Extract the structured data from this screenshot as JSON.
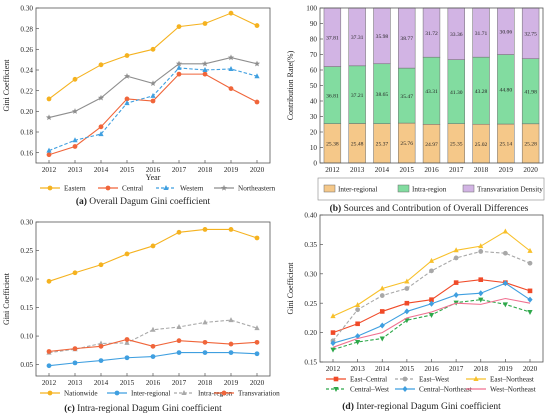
{
  "years": [
    "2012",
    "2013",
    "2014",
    "2015",
    "2016",
    "2017",
    "2018",
    "2019",
    "2020"
  ],
  "colors": {
    "eastern": "#f5b21f",
    "central": "#f0653a",
    "western": "#3f9fe0",
    "northeastern": "#8e8e8e",
    "inter_regional": "#f5c889",
    "intra_region": "#82dca0",
    "transvariation_density": "#d2b4e4",
    "nationwide": "#f5b21f",
    "inter_regional_line": "#3f9fe0",
    "intra_region_line": "#a9a9a9",
    "transvariation_line": "#f0653a",
    "east_central": "#f04a28",
    "east_west": "#a8a8a8",
    "east_northeast": "#f8c02a",
    "central_west": "#2ea84a",
    "central_northeast": "#3f9fe0",
    "west_northeast": "#f07090"
  },
  "chart_data": [
    {
      "id": "a",
      "type": "line",
      "caption_label": "(a)",
      "caption_text": "Overall Dagum Gini coefficient",
      "xlabel": "Year",
      "ylabel": "Gini Coefficient",
      "ylim": [
        0.15,
        0.3
      ],
      "yticks": [
        "0.16",
        "0.18",
        "0.20",
        "0.22",
        "0.24",
        "0.26",
        "0.28",
        "0.30"
      ],
      "grid": false,
      "legend_position": "bottom",
      "series": [
        {
          "name": "Eastern",
          "color": "eastern",
          "marker": "circle",
          "dash": false,
          "values": [
            0.212,
            0.231,
            0.245,
            0.254,
            0.26,
            0.282,
            0.285,
            0.295,
            0.283
          ]
        },
        {
          "name": "Central",
          "color": "central",
          "marker": "circle",
          "dash": false,
          "values": [
            0.158,
            0.166,
            0.185,
            0.212,
            0.21,
            0.236,
            0.236,
            0.222,
            0.209
          ]
        },
        {
          "name": "Western",
          "color": "western",
          "marker": "triangle",
          "dash": true,
          "values": [
            0.162,
            0.172,
            0.178,
            0.208,
            0.215,
            0.242,
            0.24,
            0.241,
            0.234
          ]
        },
        {
          "name": "Northeastern",
          "color": "northeastern",
          "marker": "star",
          "dash": false,
          "values": [
            0.194,
            0.2,
            0.213,
            0.234,
            0.227,
            0.246,
            0.246,
            0.252,
            0.246
          ]
        }
      ]
    },
    {
      "id": "b",
      "type": "bar",
      "stacked": true,
      "caption_label": "(b)",
      "caption_text": "Sources and Contribution of Overall Differences",
      "xlabel": "",
      "ylabel": "Contribution Rate(%)",
      "ylim": [
        0,
        100
      ],
      "yticks": [
        "0",
        "10",
        "20",
        "30",
        "40",
        "50",
        "60",
        "70",
        "80",
        "90",
        "100"
      ],
      "legend_position": "bottom",
      "series": [
        {
          "name": "Inter-regional",
          "color": "inter_regional",
          "values": [
            25.38,
            25.48,
            25.37,
            25.76,
            24.97,
            25.35,
            25.02,
            25.14,
            25.28
          ],
          "labels": [
            "25.38",
            "25.48",
            "25.37",
            "25.76",
            "24.97",
            "25.35",
            "25.02",
            "25.14",
            "25.28"
          ]
        },
        {
          "name": "Intra-region",
          "color": "intra_region",
          "values": [
            36.81,
            37.21,
            38.65,
            35.47,
            43.31,
            41.3,
            43.28,
            44.8,
            41.98
          ],
          "labels": [
            "36.81",
            "37.21",
            "38.65",
            "35.47",
            "43.31",
            "41.30",
            "43.28",
            "44.80",
            "41.98"
          ]
        },
        {
          "name": "Transvariation Density",
          "color": "transvariation_density",
          "values": [
            37.81,
            37.31,
            35.98,
            38.77,
            31.72,
            33.36,
            31.71,
            30.06,
            32.75
          ],
          "labels": [
            "37.81",
            "37.31",
            "35.98",
            "38.77",
            "31.72",
            "33.36",
            "31.71",
            "30.06",
            "32.75"
          ]
        }
      ]
    },
    {
      "id": "c",
      "type": "line",
      "caption_label": "(c)",
      "caption_text": "Intra-regional Dagum Gini coefficient",
      "xlabel": "",
      "ylabel": "Gini Coefficient",
      "ylim": [
        0.03,
        0.3
      ],
      "yticks": [
        "0.05",
        "0.10",
        "0.15",
        "0.20",
        "0.25",
        "0.30"
      ],
      "legend_position": "bottom",
      "series": [
        {
          "name": "Nationwide",
          "color": "nationwide",
          "marker": "circle",
          "dash": false,
          "values": [
            0.196,
            0.211,
            0.225,
            0.244,
            0.258,
            0.282,
            0.287,
            0.287,
            0.272
          ]
        },
        {
          "name": "Inter-regional",
          "color": "inter_regional_line",
          "marker": "circle",
          "dash": false,
          "values": [
            0.048,
            0.053,
            0.057,
            0.062,
            0.064,
            0.071,
            0.071,
            0.071,
            0.069
          ]
        },
        {
          "name": "Intra-region",
          "color": "intra_region_line",
          "marker": "triangle",
          "dash": true,
          "values": [
            0.071,
            0.077,
            0.087,
            0.088,
            0.111,
            0.116,
            0.124,
            0.128,
            0.114
          ]
        },
        {
          "name": "Transvariation",
          "color": "transvariation_line",
          "marker": "circle",
          "dash": false,
          "values": [
            0.073,
            0.078,
            0.082,
            0.094,
            0.082,
            0.092,
            0.089,
            0.086,
            0.089
          ]
        }
      ]
    },
    {
      "id": "d",
      "type": "line",
      "caption_label": "(d)",
      "caption_text": "Inter-regional Dagum Gini coefficient",
      "xlabel": "",
      "ylabel": "Gini Coefficient",
      "ylim": [
        0.15,
        0.4
      ],
      "yticks": [
        "0.15",
        "0.20",
        "0.25",
        "0.30",
        "0.35",
        "0.40"
      ],
      "legend_position": "bottom",
      "series": [
        {
          "name": "East–Central",
          "color": "east_central",
          "marker": "square",
          "dash": false,
          "values": [
            0.2,
            0.215,
            0.236,
            0.25,
            0.256,
            0.285,
            0.29,
            0.285,
            0.271
          ]
        },
        {
          "name": "East–West",
          "color": "east_west",
          "marker": "circle",
          "dash": true,
          "values": [
            0.186,
            0.239,
            0.263,
            0.275,
            0.305,
            0.327,
            0.338,
            0.335,
            0.318
          ]
        },
        {
          "name": "East–Northeast",
          "color": "east_northeast",
          "marker": "triangle",
          "dash": false,
          "values": [
            0.228,
            0.247,
            0.275,
            0.287,
            0.322,
            0.34,
            0.347,
            0.372,
            0.339
          ]
        },
        {
          "name": "Central–West",
          "color": "central_west",
          "marker": "triangle-down",
          "dash": true,
          "values": [
            0.171,
            0.184,
            0.19,
            0.221,
            0.23,
            0.251,
            0.256,
            0.248,
            0.235
          ]
        },
        {
          "name": "Central–Northeast",
          "color": "central_northeast",
          "marker": "diamond",
          "dash": false,
          "values": [
            0.182,
            0.194,
            0.212,
            0.236,
            0.249,
            0.264,
            0.267,
            0.284,
            0.256
          ]
        },
        {
          "name": "West–Northeast",
          "color": "west_northeast",
          "marker": "none",
          "dash": false,
          "values": [
            0.175,
            0.19,
            0.2,
            0.225,
            0.235,
            0.25,
            0.248,
            0.258,
            0.25
          ]
        }
      ]
    }
  ]
}
